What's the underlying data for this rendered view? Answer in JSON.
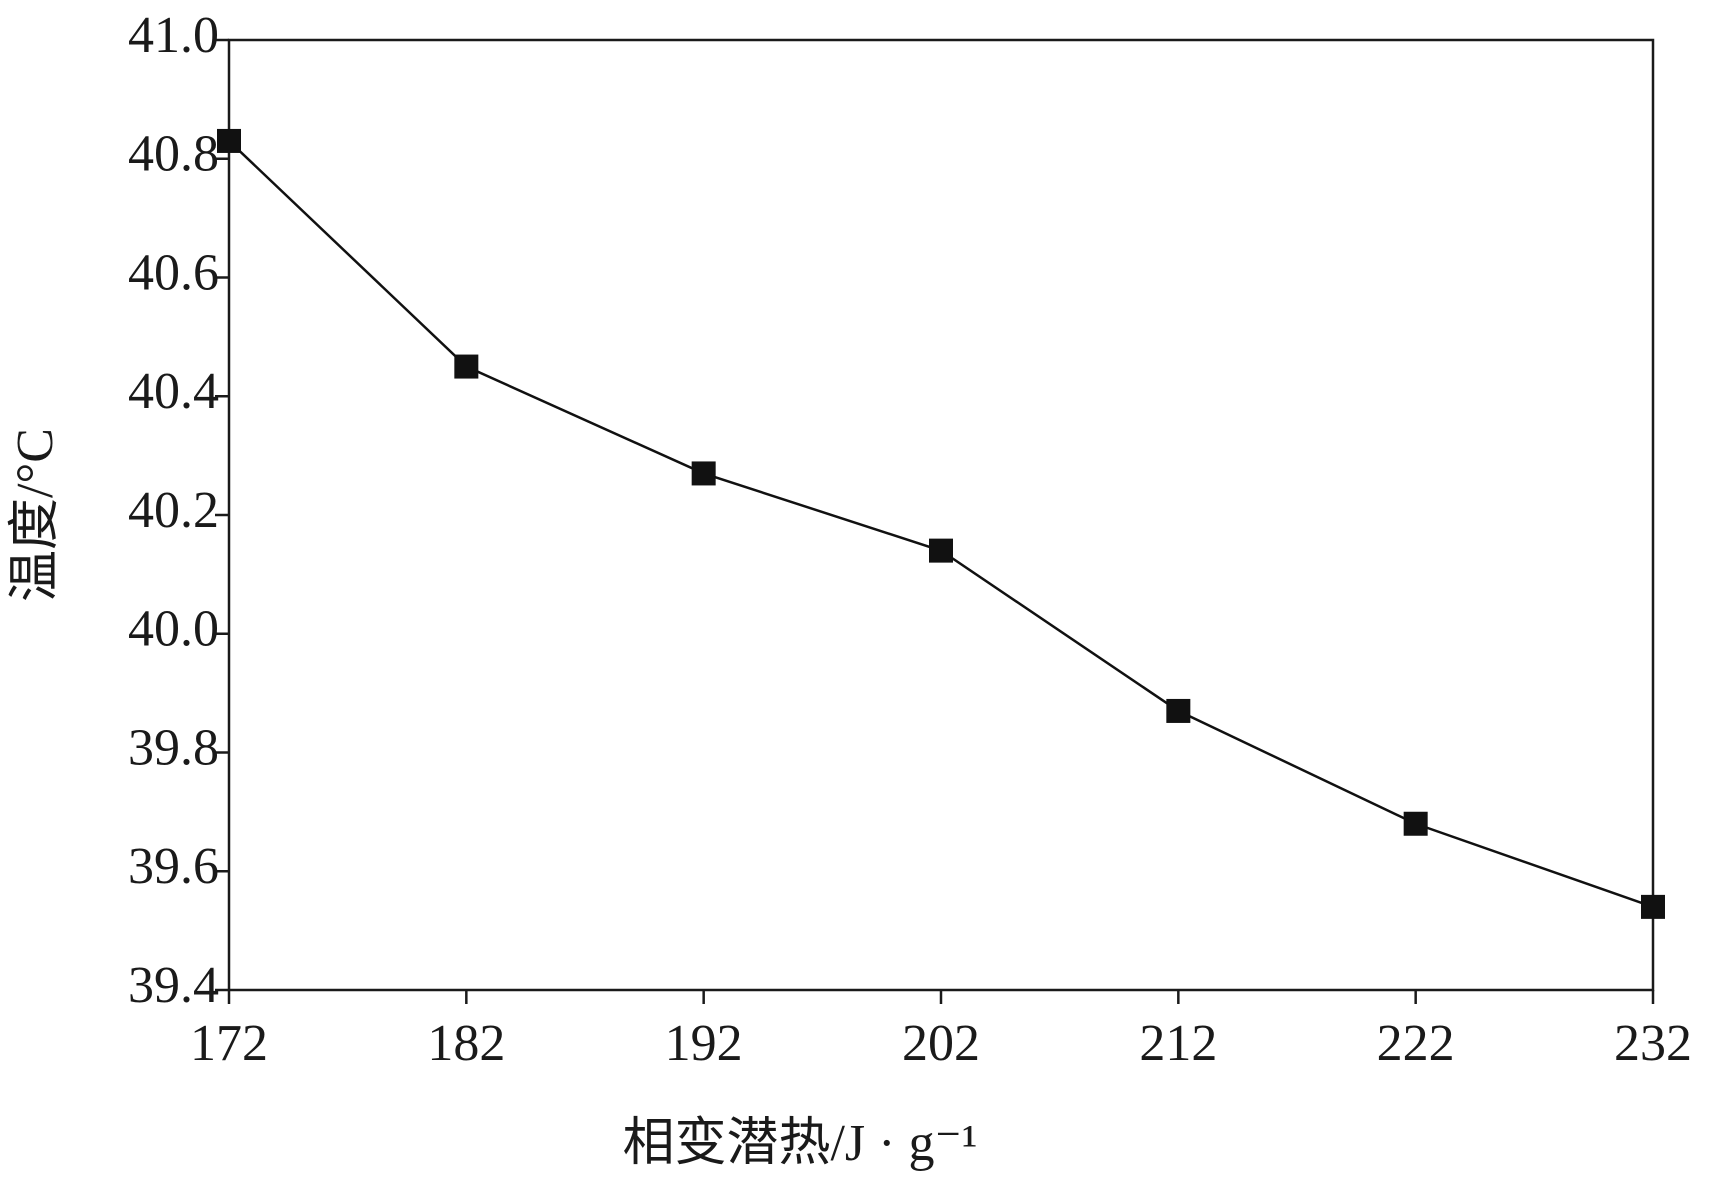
{
  "chart_data": {
    "type": "line",
    "x_label": "相变潜热/J · g⁻¹",
    "y_label": "温度/°C",
    "x": [
      172,
      182,
      192,
      202,
      212,
      222,
      232
    ],
    "values": [
      40.83,
      40.45,
      40.27,
      40.14,
      39.87,
      39.68,
      39.54
    ],
    "color": "#111111",
    "xlim": [
      172,
      232
    ],
    "xticks": [
      172,
      182,
      192,
      202,
      212,
      222,
      232
    ],
    "ylim": [
      39.4,
      41.0
    ],
    "yticks": [
      39.4,
      39.6,
      39.8,
      {
        "value": 40.0,
        "label": "40.0"
      },
      40.2,
      40.4,
      40.6,
      40.8,
      {
        "value": 41.0,
        "label": "41.0"
      }
    ],
    "grid": false
  }
}
